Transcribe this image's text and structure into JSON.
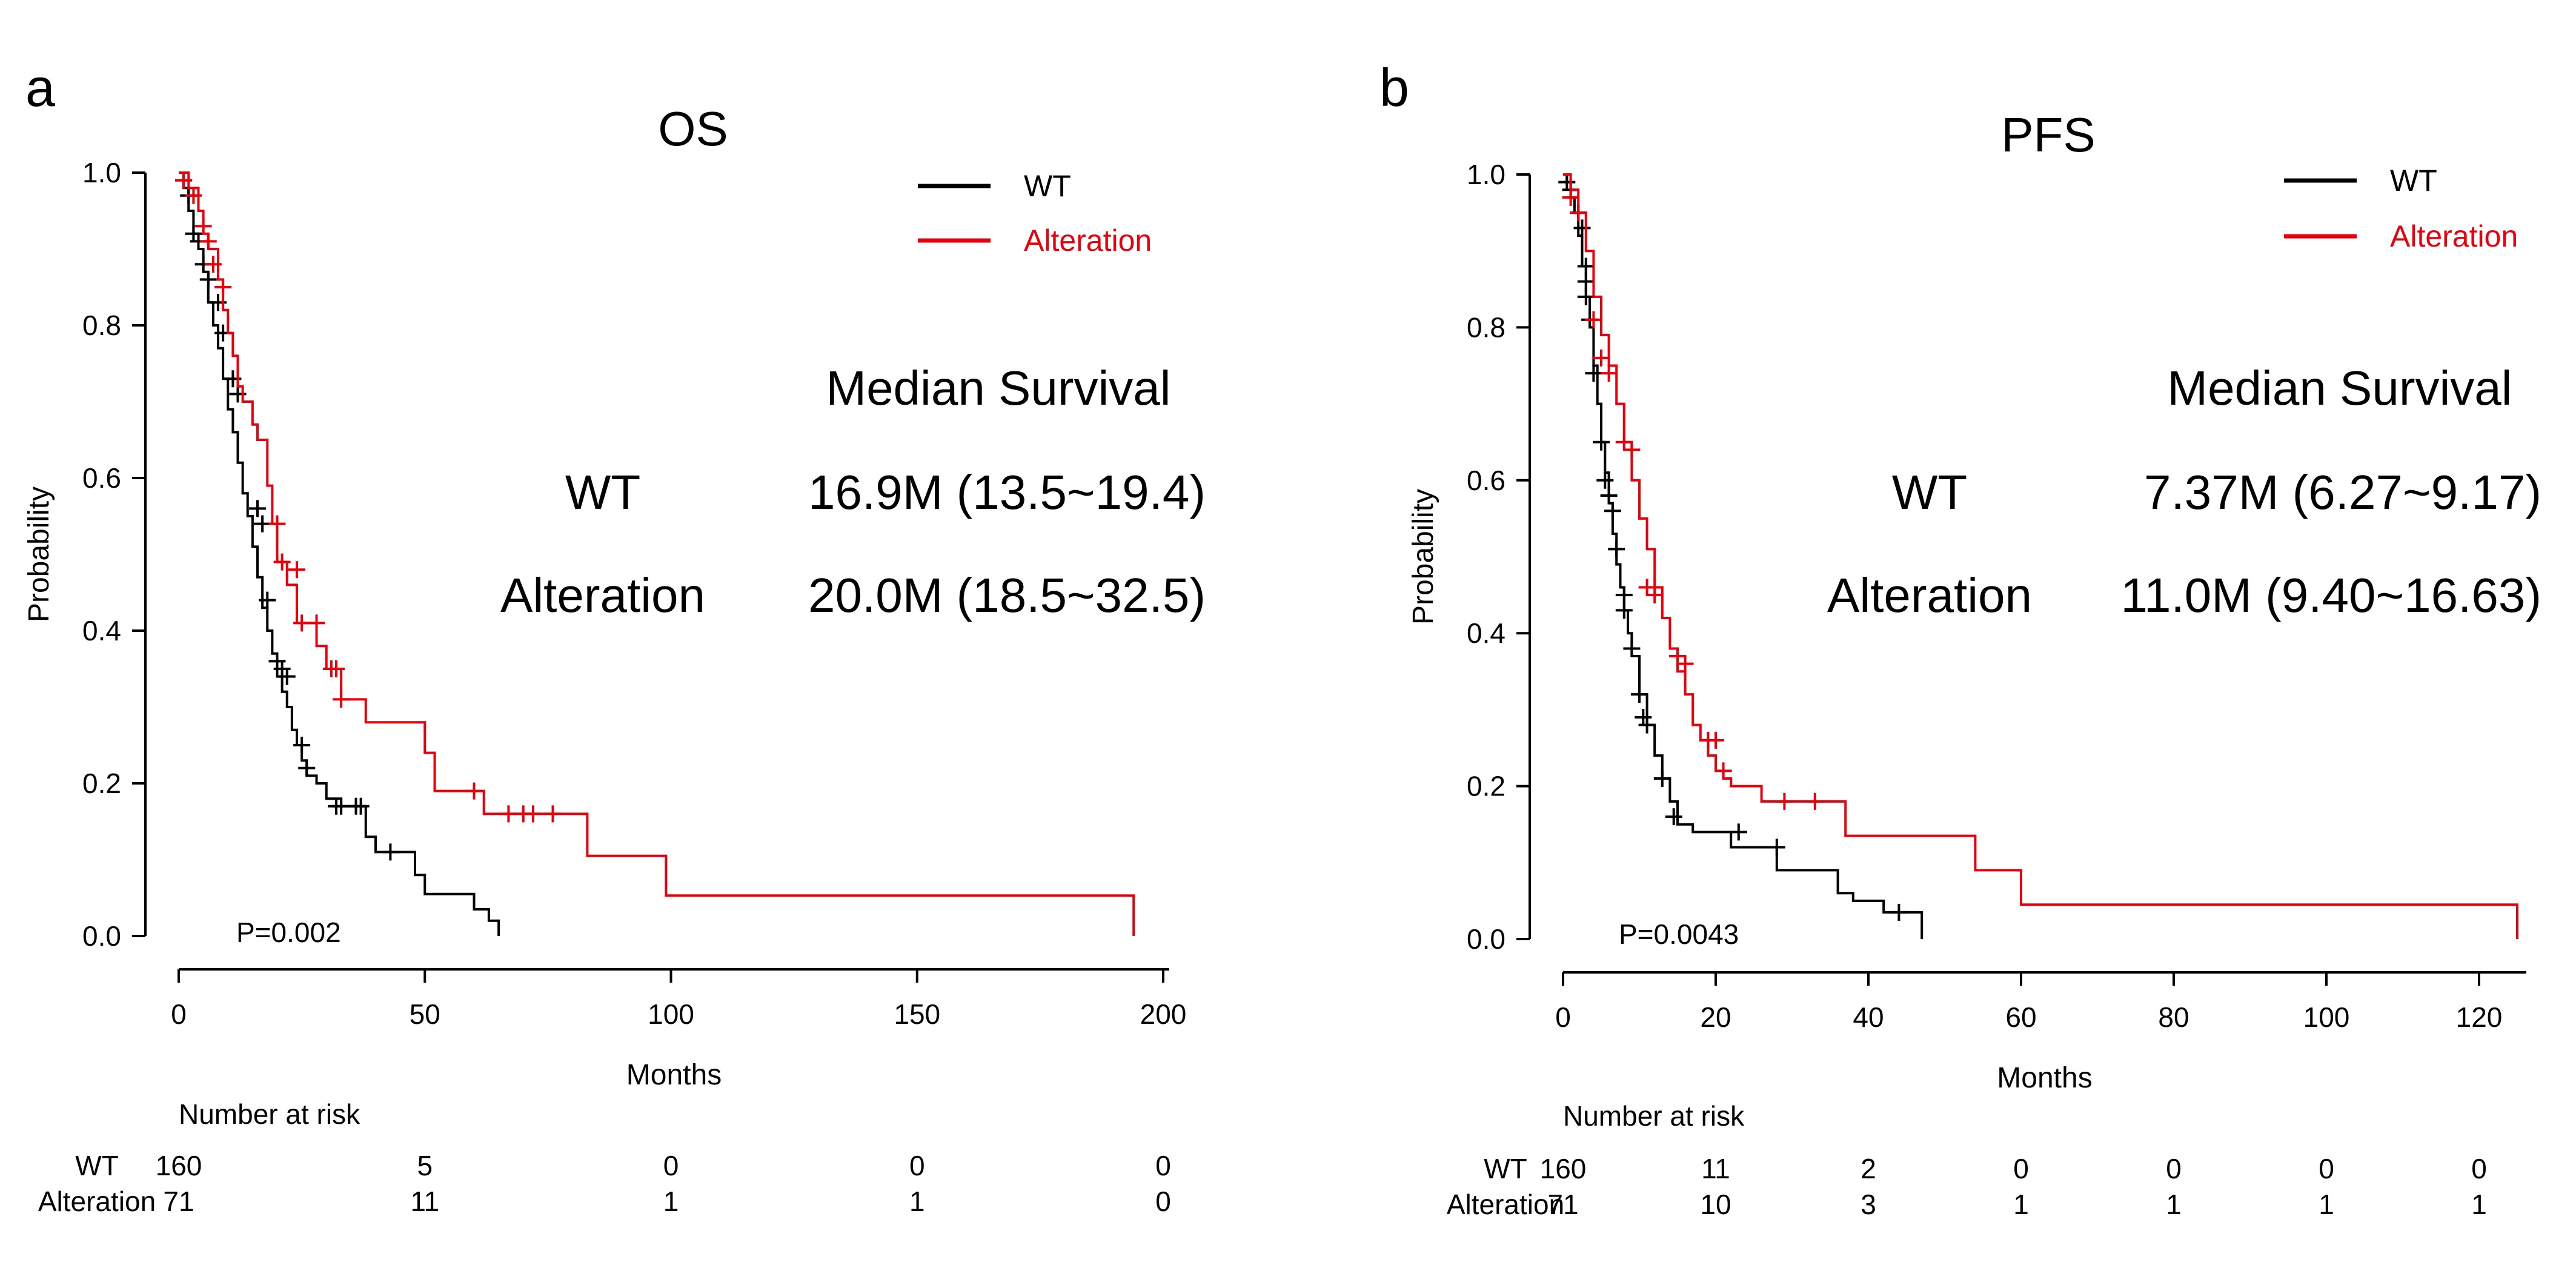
{
  "colors": {
    "wt": "#000000",
    "alteration": "#e8000b",
    "axis": "#000000"
  },
  "chart_data": [
    {
      "type": "line",
      "panel_label": "a",
      "title": "OS",
      "xlabel": "Months",
      "ylabel": "Probability",
      "xlim": [
        0,
        200
      ],
      "ylim": [
        0,
        1
      ],
      "x_ticks": [
        "0",
        "50",
        "100",
        "150",
        "200"
      ],
      "y_ticks": [
        "0.0",
        "0.2",
        "0.4",
        "0.6",
        "0.8",
        "1.0"
      ],
      "grid": false,
      "legend": {
        "position": "top-right",
        "entries": [
          "WT",
          "Alteration"
        ]
      },
      "p_value": "P=0.002",
      "median_survival": {
        "heading": "Median Survival",
        "rows": [
          {
            "group": "WT",
            "value": "16.9M (13.5~19.4)"
          },
          {
            "group": "Alteration",
            "value": "20.0M (18.5~32.5)"
          }
        ]
      },
      "risk_table": {
        "heading": "Number at risk",
        "times": [
          "0",
          "50",
          "100",
          "150",
          "200"
        ],
        "rows": [
          {
            "group": "WT",
            "counts": [
              "160",
              "5",
              "0",
              "0",
              "0"
            ]
          },
          {
            "group": "Alteration",
            "counts": [
              "71",
              "11",
              "1",
              "1",
              "0"
            ]
          }
        ]
      },
      "series": [
        {
          "name": "WT",
          "x": [
            0,
            1,
            2,
            3,
            4,
            5,
            6,
            7,
            8,
            9,
            10,
            11,
            12,
            13,
            14,
            15,
            16,
            17,
            18,
            19,
            20,
            21,
            22,
            23,
            24,
            25,
            26,
            28,
            30,
            33,
            36,
            38,
            40,
            44,
            48,
            50,
            56,
            60,
            63,
            65
          ],
          "y": [
            1.0,
            0.98,
            0.95,
            0.92,
            0.9,
            0.87,
            0.83,
            0.8,
            0.77,
            0.73,
            0.69,
            0.66,
            0.62,
            0.58,
            0.55,
            0.51,
            0.47,
            0.43,
            0.4,
            0.37,
            0.34,
            0.32,
            0.3,
            0.27,
            0.25,
            0.23,
            0.21,
            0.2,
            0.18,
            0.17,
            0.17,
            0.13,
            0.11,
            0.11,
            0.08,
            0.055,
            0.055,
            0.035,
            0.02,
            0.0
          ],
          "censor_x": [
            1,
            2,
            3,
            4,
            5,
            6,
            8,
            9,
            11,
            12,
            16,
            17,
            18,
            20,
            21,
            22,
            25,
            26,
            32,
            33,
            36,
            37,
            43
          ],
          "censor_y": [
            0.99,
            0.97,
            0.92,
            0.91,
            0.88,
            0.86,
            0.83,
            0.79,
            0.73,
            0.71,
            0.56,
            0.54,
            0.44,
            0.36,
            0.35,
            0.34,
            0.25,
            0.22,
            0.17,
            0.17,
            0.17,
            0.17,
            0.11
          ]
        },
        {
          "name": "Alteration",
          "x": [
            0,
            2,
            4,
            5,
            6,
            8,
            9,
            10,
            11,
            12,
            13,
            15,
            16,
            18,
            19,
            20,
            22,
            24,
            26,
            28,
            30,
            33,
            36,
            38,
            43,
            50,
            52,
            54,
            62,
            70,
            83,
            99,
            194
          ],
          "y": [
            1.0,
            0.98,
            0.95,
            0.92,
            0.9,
            0.86,
            0.82,
            0.79,
            0.76,
            0.72,
            0.7,
            0.67,
            0.65,
            0.59,
            0.54,
            0.49,
            0.46,
            0.41,
            0.41,
            0.38,
            0.35,
            0.31,
            0.31,
            0.28,
            0.28,
            0.24,
            0.19,
            0.19,
            0.16,
            0.16,
            0.105,
            0.053,
            0.0
          ],
          "censor_x": [
            1,
            3,
            5,
            6,
            7,
            9,
            20,
            21,
            24,
            25,
            28,
            31,
            32,
            33,
            60,
            67,
            70,
            72,
            76
          ],
          "censor_y": [
            0.99,
            0.97,
            0.93,
            0.91,
            0.88,
            0.85,
            0.54,
            0.49,
            0.48,
            0.41,
            0.41,
            0.35,
            0.35,
            0.31,
            0.19,
            0.16,
            0.16,
            0.16,
            0.16
          ]
        }
      ]
    },
    {
      "type": "line",
      "panel_label": "b",
      "title": "PFS",
      "xlabel": "Months",
      "ylabel": "Probability",
      "xlim": [
        0,
        125
      ],
      "ylim": [
        0,
        1
      ],
      "x_ticks": [
        "0",
        "20",
        "40",
        "60",
        "80",
        "100",
        "120"
      ],
      "y_ticks": [
        "0.0",
        "0.2",
        "0.4",
        "0.6",
        "0.8",
        "1.0"
      ],
      "grid": false,
      "legend": {
        "position": "top-right",
        "entries": [
          "WT",
          "Alteration"
        ]
      },
      "p_value": "P=0.0043",
      "median_survival": {
        "heading": "Median Survival",
        "rows": [
          {
            "group": "WT",
            "value": "7.37M (6.27~9.17)"
          },
          {
            "group": "Alteration",
            "value": "11.0M (9.40~16.63)"
          }
        ]
      },
      "risk_table": {
        "heading": "Number at risk",
        "times": [
          "0",
          "20",
          "40",
          "60",
          "80",
          "100",
          "120"
        ],
        "rows": [
          {
            "group": "WT",
            "counts": [
              "160",
              "11",
              "2",
              "0",
              "0",
              "0",
              "0"
            ]
          },
          {
            "group": "Alteration",
            "counts": [
              "71",
              "10",
              "3",
              "1",
              "1",
              "1",
              "1"
            ]
          }
        ]
      },
      "series": [
        {
          "name": "WT",
          "x": [
            0,
            0.5,
            1,
            1.5,
            2,
            2.5,
            3,
            3.5,
            4,
            4.5,
            5,
            5.5,
            6,
            6.5,
            7,
            7.5,
            8,
            8.5,
            9,
            10,
            11,
            12,
            13,
            14,
            15,
            17,
            22,
            25,
            28,
            32,
            36,
            38,
            42,
            47
          ],
          "y": [
            1.0,
            0.99,
            0.97,
            0.95,
            0.92,
            0.88,
            0.84,
            0.8,
            0.75,
            0.7,
            0.65,
            0.61,
            0.57,
            0.53,
            0.49,
            0.46,
            0.43,
            0.4,
            0.37,
            0.32,
            0.28,
            0.24,
            0.21,
            0.18,
            0.15,
            0.14,
            0.12,
            0.12,
            0.09,
            0.09,
            0.06,
            0.05,
            0.035,
            0.0
          ],
          "censor_x": [
            0.5,
            1,
            2,
            2.5,
            3,
            3,
            3,
            3.5,
            4,
            5,
            5.5,
            6,
            6.5,
            7,
            8,
            8,
            9,
            10,
            10.5,
            11,
            13,
            14.5,
            23,
            28,
            44
          ],
          "censor_y": [
            0.99,
            0.98,
            0.95,
            0.93,
            0.88,
            0.86,
            0.84,
            0.81,
            0.74,
            0.65,
            0.6,
            0.58,
            0.56,
            0.51,
            0.45,
            0.43,
            0.38,
            0.32,
            0.29,
            0.28,
            0.21,
            0.16,
            0.14,
            0.12,
            0.035
          ]
        },
        {
          "name": "Alteration",
          "x": [
            0,
            1,
            2,
            3,
            4,
            5,
            6,
            7,
            8,
            9,
            10,
            11,
            12,
            13,
            14,
            15,
            16,
            17,
            18,
            19,
            20,
            21,
            22,
            26,
            30,
            37,
            47,
            54,
            60,
            125
          ],
          "y": [
            1.0,
            0.98,
            0.95,
            0.9,
            0.84,
            0.79,
            0.75,
            0.7,
            0.65,
            0.6,
            0.55,
            0.51,
            0.46,
            0.42,
            0.38,
            0.35,
            0.32,
            0.28,
            0.26,
            0.24,
            0.22,
            0.21,
            0.2,
            0.18,
            0.18,
            0.135,
            0.135,
            0.09,
            0.045,
            0.0
          ],
          "censor_x": [
            1,
            2,
            4,
            5,
            6,
            8,
            9,
            11,
            12,
            15,
            16,
            19,
            20,
            21,
            29,
            33
          ],
          "censor_y": [
            0.97,
            0.95,
            0.81,
            0.76,
            0.74,
            0.65,
            0.64,
            0.46,
            0.45,
            0.37,
            0.36,
            0.26,
            0.26,
            0.22,
            0.18,
            0.18
          ]
        }
      ]
    }
  ]
}
